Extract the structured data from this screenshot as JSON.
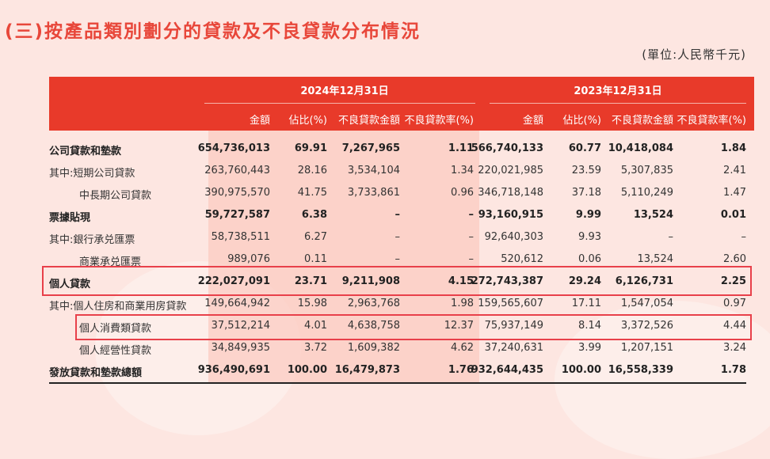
{
  "title": "(三)按產品類別劃分的貸款及不良貸款分布情況",
  "unit": "(單位:人民幣千元)",
  "periods": [
    "2024年12月31日",
    "2023年12月31日"
  ],
  "columns": [
    "金額",
    "佔比(%)",
    "不良貸款金額",
    "不良貸款率(%)"
  ],
  "rows": [
    {
      "label": "公司貸款和墊款",
      "bold": true,
      "indent": 0,
      "v": [
        "654,736,013",
        "69.91",
        "7,267,965",
        "1.11",
        "566,740,133",
        "60.77",
        "10,418,084",
        "1.84"
      ]
    },
    {
      "label": "其中:短期公司貸款",
      "bold": false,
      "indent": 0,
      "v": [
        "263,760,443",
        "28.16",
        "3,534,104",
        "1.34",
        "220,021,985",
        "23.59",
        "5,307,835",
        "2.41"
      ]
    },
    {
      "label": "中長期公司貸款",
      "bold": false,
      "indent": 1,
      "v": [
        "390,975,570",
        "41.75",
        "3,733,861",
        "0.96",
        "346,718,148",
        "37.18",
        "5,110,249",
        "1.47"
      ]
    },
    {
      "label": "票據貼現",
      "bold": true,
      "indent": 0,
      "v": [
        "59,727,587",
        "6.38",
        "–",
        "–",
        "93,160,915",
        "9.99",
        "13,524",
        "0.01"
      ]
    },
    {
      "label": "其中:銀行承兑匯票",
      "bold": false,
      "indent": 0,
      "v": [
        "58,738,511",
        "6.27",
        "–",
        "–",
        "92,640,303",
        "9.93",
        "–",
        "–"
      ]
    },
    {
      "label": "商業承兑匯票",
      "bold": false,
      "indent": 1,
      "v": [
        "989,076",
        "0.11",
        "–",
        "–",
        "520,612",
        "0.06",
        "13,524",
        "2.60"
      ]
    },
    {
      "label": "個人貸款",
      "bold": true,
      "indent": 0,
      "v": [
        "222,027,091",
        "23.71",
        "9,211,908",
        "4.15",
        "272,743,387",
        "29.24",
        "6,126,731",
        "2.25"
      ]
    },
    {
      "label": "其中:個人住房和商業用房貸款",
      "bold": false,
      "indent": 0,
      "v": [
        "149,664,942",
        "15.98",
        "2,963,768",
        "1.98",
        "159,565,607",
        "17.11",
        "1,547,054",
        "0.97"
      ]
    },
    {
      "label": "個人消費類貸款",
      "bold": false,
      "indent": 1,
      "v": [
        "37,512,214",
        "4.01",
        "4,638,758",
        "12.37",
        "75,937,149",
        "8.14",
        "3,372,526",
        "4.44"
      ]
    },
    {
      "label": "個人經營性貸款",
      "bold": false,
      "indent": 1,
      "v": [
        "34,849,935",
        "3.72",
        "1,609,382",
        "4.62",
        "37,240,631",
        "3.99",
        "1,207,151",
        "3.24"
      ]
    },
    {
      "label": "發放貸款和墊款總額",
      "bold": true,
      "indent": 0,
      "v": [
        "936,490,691",
        "100.00",
        "16,479,873",
        "1.76",
        "932,644,435",
        "100.00",
        "16,558,339",
        "1.78"
      ]
    }
  ],
  "colors": {
    "header": "#e83a2a",
    "highlight_box": "#e8404a",
    "background": "#fde6e1"
  }
}
